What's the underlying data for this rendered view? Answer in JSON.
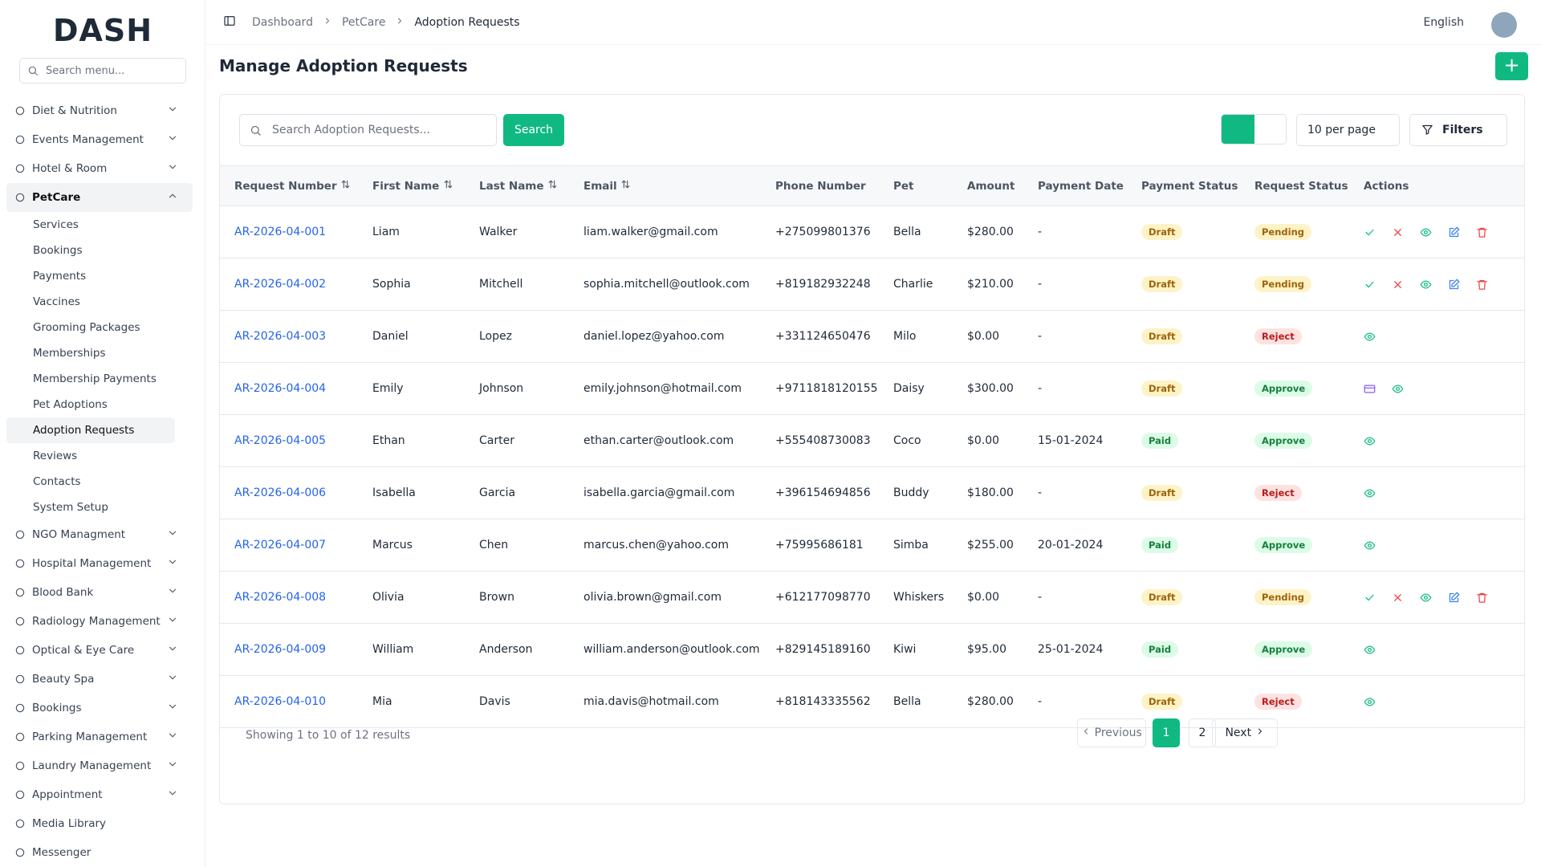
{
  "brand": "DASH",
  "sidebar": {
    "search": "Search menu...",
    "menu": [
      {
        "label": "Diet & Nutrition",
        "submenu": true
      },
      {
        "label": "Events Management",
        "submenu": true
      },
      {
        "label": "Hotel & Room",
        "submenu": true
      },
      {
        "label": "PetCare",
        "submenu": true,
        "children": [
          "Services",
          "Bookings",
          "Payments",
          "Vaccines",
          "Grooming Packages",
          "Memberships",
          "Membership Payments",
          "Pet Adoptions",
          "Adoption Requests",
          "Reviews",
          "Contacts",
          "System Setup"
        ]
      },
      {
        "label": "NGO Managment",
        "submenu": true
      },
      {
        "label": "Hospital Management",
        "submenu": true
      },
      {
        "label": "Blood Bank",
        "submenu": true
      },
      {
        "label": "Radiology Management",
        "submenu": true
      },
      {
        "label": "Optical & Eye Care",
        "submenu": true
      },
      {
        "label": "Beauty Spa",
        "submenu": true
      },
      {
        "label": "Bookings",
        "submenu": true
      },
      {
        "label": "Parking Management",
        "submenu": true
      },
      {
        "label": "Laundry Management",
        "submenu": true
      },
      {
        "label": "Appointment",
        "submenu": true
      },
      {
        "label": "Media Library",
        "submenu": false
      },
      {
        "label": "Messenger",
        "submenu": false
      }
    ]
  },
  "header": {
    "breadcrumb": [
      "Dashboard",
      "PetCare",
      "Adoption Requests"
    ],
    "language": "English"
  },
  "page": {
    "title": "Manage Adoption Requests",
    "search_placeholder": "Search Adoption Requests...",
    "search_button": "Search",
    "per_page": "10 per page",
    "filters": "Filters"
  },
  "table": {
    "columns": [
      "Request Number",
      "First Name",
      "Last Name",
      "Email",
      "Phone Number",
      "Pet",
      "Amount",
      "Payment Date",
      "Payment Status",
      "Request Status",
      "Actions"
    ],
    "sortable": [
      true,
      true,
      true,
      true,
      false,
      false,
      false,
      false,
      false,
      false,
      false
    ],
    "rows": [
      [
        "AR-2026-04-001",
        "Liam",
        "Walker",
        "liam.walker@gmail.com",
        "+275099801376",
        "Bella",
        "$280.00",
        "-",
        "Draft",
        "Pending"
      ],
      [
        "AR-2026-04-002",
        "Sophia",
        "Mitchell",
        "sophia.mitchell@outlook.com",
        "+819182932248",
        "Charlie",
        "$210.00",
        "-",
        "Draft",
        "Pending"
      ],
      [
        "AR-2026-04-003",
        "Daniel",
        "Lopez",
        "daniel.lopez@yahoo.com",
        "+331124650476",
        "Milo",
        "$0.00",
        "-",
        "Draft",
        "Reject"
      ],
      [
        "AR-2026-04-004",
        "Emily",
        "Johnson",
        "emily.johnson@hotmail.com",
        "+9711818120155",
        "Daisy",
        "$300.00",
        "-",
        "Draft",
        "Approve"
      ],
      [
        "AR-2026-04-005",
        "Ethan",
        "Carter",
        "ethan.carter@outlook.com",
        "+555408730083",
        "Coco",
        "$0.00",
        "15-01-2024",
        "Paid",
        "Approve"
      ],
      [
        "AR-2026-04-006",
        "Isabella",
        "Garcia",
        "isabella.garcia@gmail.com",
        "+396154694856",
        "Buddy",
        "$180.00",
        "-",
        "Draft",
        "Reject"
      ],
      [
        "AR-2026-04-007",
        "Marcus",
        "Chen",
        "marcus.chen@yahoo.com",
        "+75995686181",
        "Simba",
        "$255.00",
        "20-01-2024",
        "Paid",
        "Approve"
      ],
      [
        "AR-2026-04-008",
        "Olivia",
        "Brown",
        "olivia.brown@gmail.com",
        "+612177098770",
        "Whiskers",
        "$0.00",
        "-",
        "Draft",
        "Pending"
      ],
      [
        "AR-2026-04-009",
        "William",
        "Anderson",
        "william.anderson@outlook.com",
        "+829145189160",
        "Kiwi",
        "$95.00",
        "25-01-2024",
        "Paid",
        "Approve"
      ],
      [
        "AR-2026-04-010",
        "Mia",
        "Davis",
        "mia.davis@hotmail.com",
        "+818143335562",
        "Bella",
        "$280.00",
        "-",
        "Draft",
        "Reject"
      ]
    ]
  },
  "footer": {
    "summary": "Showing 1 to 10 of 12 results",
    "previous": "Previous",
    "pages": [
      1,
      2
    ],
    "current": 1,
    "next": "Next"
  }
}
